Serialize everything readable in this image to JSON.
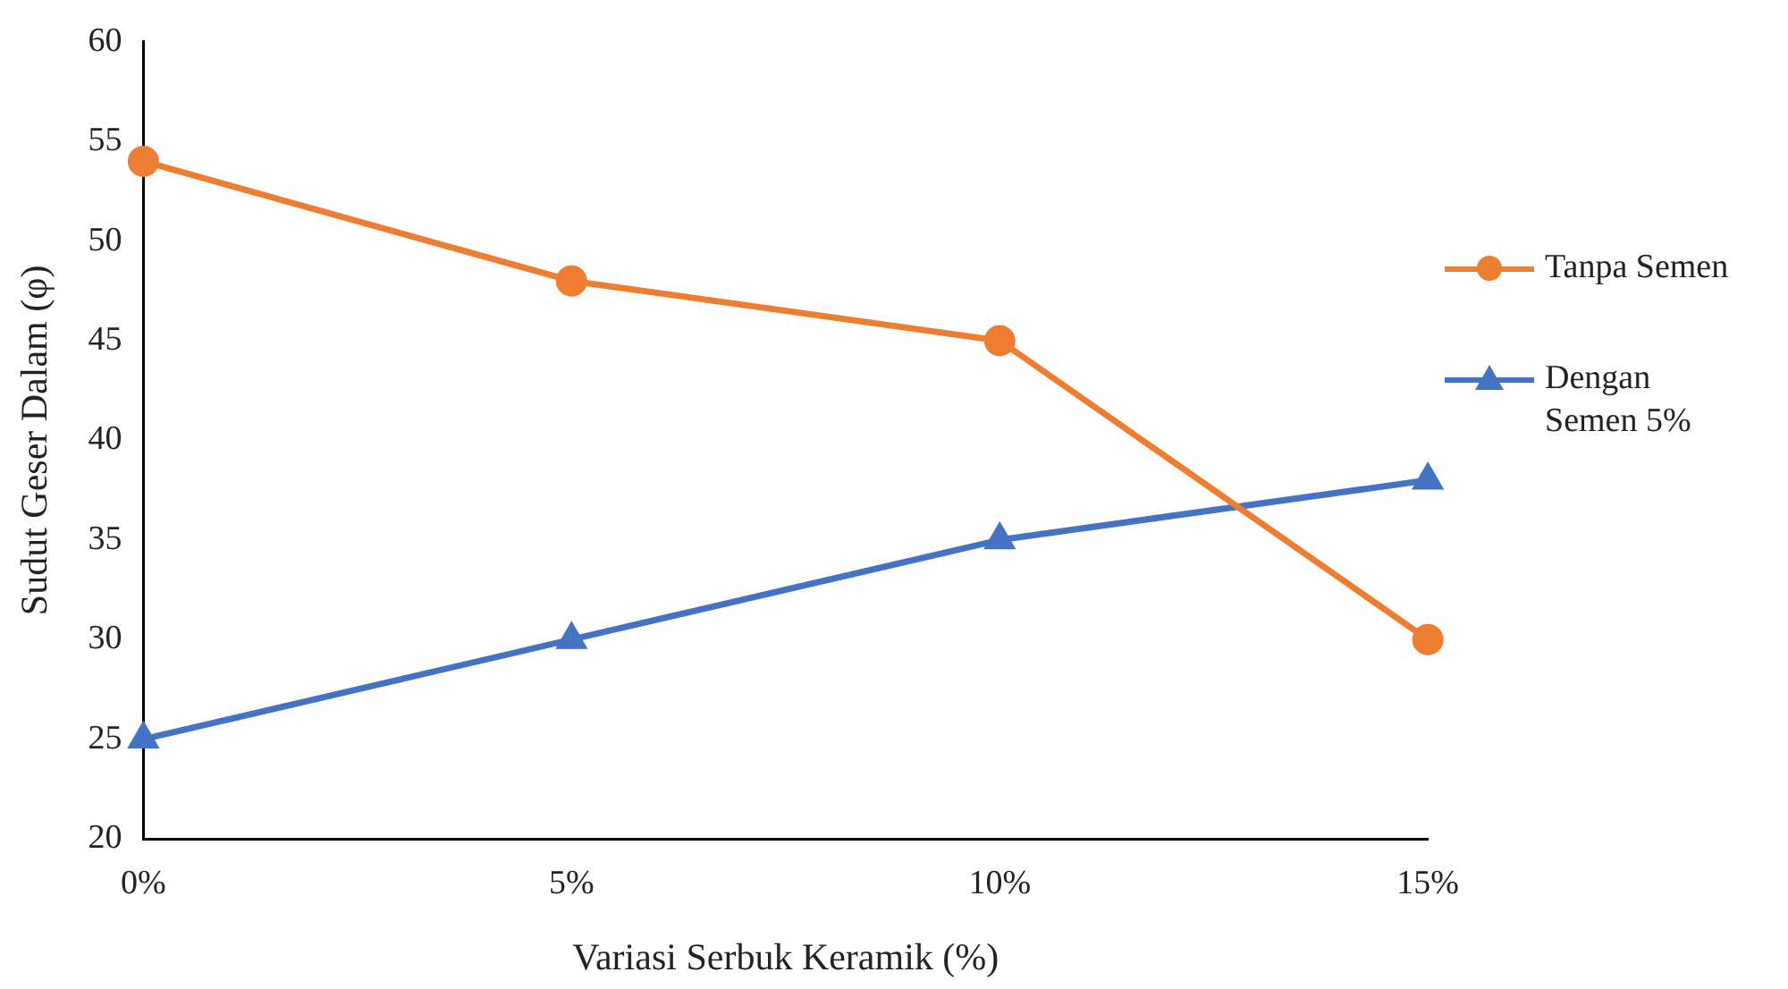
{
  "chart_data": {
    "type": "line",
    "xlabel": "Variasi Serbuk Keramik (%)",
    "ylabel": "Sudut Geser Dalam (φ)",
    "categories": [
      "0%",
      "5%",
      "10%",
      "15%"
    ],
    "series": [
      {
        "name": "Tanpa Semen",
        "color": "#ed7d31",
        "values": [
          54,
          48,
          45,
          30
        ],
        "marker": "circle"
      },
      {
        "name": "Dengan Semen 5%",
        "color": "#4472c4",
        "values": [
          25,
          30,
          35,
          38
        ],
        "marker": "triangle"
      }
    ],
    "ylim": [
      20,
      60
    ],
    "yticks": [
      20,
      25,
      30,
      35,
      40,
      45,
      50,
      55,
      60
    ],
    "grid": false,
    "legend": "right",
    "line_style": "solid"
  }
}
